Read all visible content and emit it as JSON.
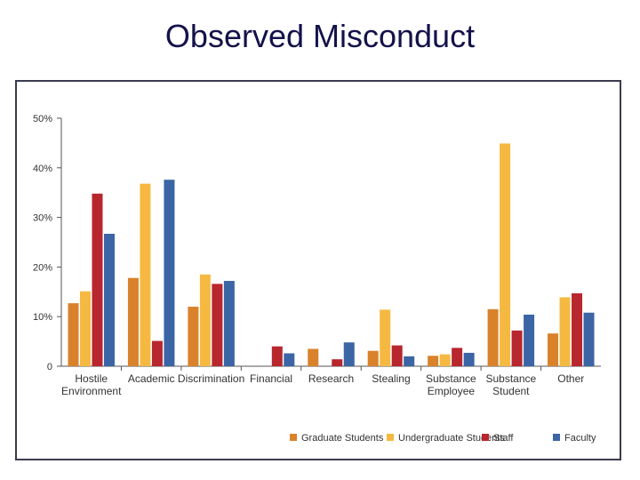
{
  "title": "Observed Misconduct",
  "chart_data": {
    "type": "bar",
    "title": "Observed Misconduct",
    "xlabel": "",
    "ylabel": "",
    "ylim": [
      0,
      50
    ],
    "yticks": [
      0,
      10,
      20,
      30,
      40,
      50
    ],
    "ytick_labels": [
      "0",
      "10%",
      "20%",
      "30%",
      "40%",
      "50%"
    ],
    "categories": [
      [
        "Hostile",
        "Environment"
      ],
      [
        "Academic"
      ],
      [
        "Discrimination"
      ],
      [
        "Financial"
      ],
      [
        "Research"
      ],
      [
        "Stealing"
      ],
      [
        "Substance",
        "Employee"
      ],
      [
        "Substance",
        "Student"
      ],
      [
        "Other"
      ]
    ],
    "series": [
      {
        "name": "Graduate Students",
        "color": "#d9822b",
        "values": [
          12.7,
          17.8,
          12.0,
          0,
          3.5,
          3.1,
          2.1,
          11.5,
          6.6
        ]
      },
      {
        "name": "Undergraduate Students",
        "color": "#f5b942",
        "values": [
          15.1,
          36.8,
          18.5,
          0,
          0,
          11.4,
          2.4,
          44.9,
          13.9
        ]
      },
      {
        "name": "Staff",
        "color": "#b8262e",
        "values": [
          34.8,
          5.1,
          16.6,
          4.0,
          1.4,
          4.2,
          3.7,
          7.2,
          14.7
        ]
      },
      {
        "name": "Faculty",
        "color": "#3b65a5",
        "values": [
          26.7,
          37.6,
          17.2,
          2.6,
          4.8,
          2.0,
          2.7,
          10.4,
          10.8
        ]
      }
    ],
    "legend_position": "bottom-right"
  }
}
